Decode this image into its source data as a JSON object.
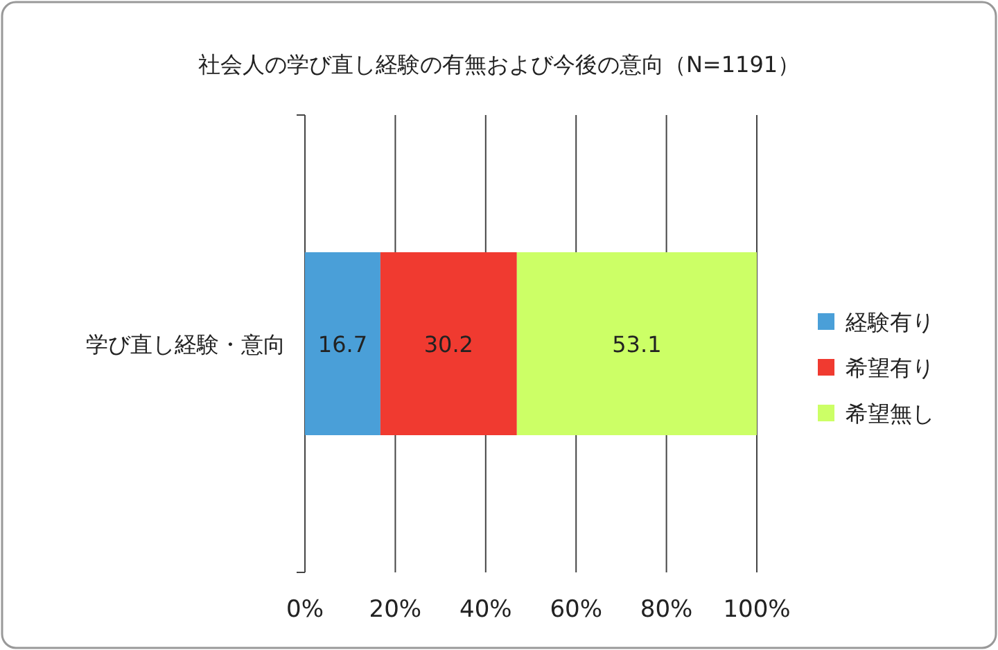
{
  "chart_data": {
    "type": "bar",
    "orientation": "horizontal",
    "stacked": true,
    "title": "社会人の学び直し経験の有無および今後の意向（N=1191）",
    "categories": [
      "学び直し経験・意向"
    ],
    "series": [
      {
        "name": "経験有り",
        "color": "#4a9fd8",
        "values": [
          16.7
        ]
      },
      {
        "name": "希望有り",
        "color": "#f03a30",
        "values": [
          30.2
        ]
      },
      {
        "name": "希望無し",
        "color": "#ccff66",
        "values": [
          53.1
        ]
      }
    ],
    "xlim": [
      0,
      100
    ],
    "xticks": [
      {
        "value": 0,
        "label": "0%"
      },
      {
        "value": 20,
        "label": "20%"
      },
      {
        "value": 40,
        "label": "40%"
      },
      {
        "value": 60,
        "label": "60%"
      },
      {
        "value": 80,
        "label": "80%"
      },
      {
        "value": 100,
        "label": "100%"
      }
    ],
    "grid": "x",
    "legend": "right",
    "data_labels": true
  }
}
